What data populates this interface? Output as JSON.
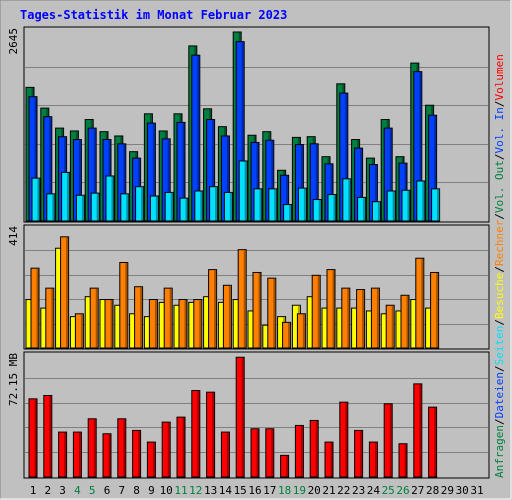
{
  "title": "Tages-Statistik im Monat Februar 2023",
  "colors": {
    "background": "#c0c0c0",
    "frame": "#000000",
    "title": "#0000ff",
    "anfragen": "#008040",
    "dateien": "#0040ff",
    "seiten": "#00e0ff",
    "besuche": "#ffff00",
    "rechner": "#ff8000",
    "vol_out": "#008040",
    "vol_in": "#0040ff",
    "volumen": "#ff0000",
    "weekend_label": "#008040",
    "weekday_label": "#000000"
  },
  "right_legend": [
    {
      "text": "Anfragen",
      "color": "#008040"
    },
    {
      "text": "/",
      "color": "#000000"
    },
    {
      "text": "Dateien",
      "color": "#0040ff"
    },
    {
      "text": "/",
      "color": "#000000"
    },
    {
      "text": "Seiten",
      "color": "#00e0ff"
    },
    {
      "text": "/",
      "color": "#000000"
    },
    {
      "text": "Besuche",
      "color": "#ffff00"
    },
    {
      "text": "/",
      "color": "#000000"
    },
    {
      "text": "Rechner",
      "color": "#ff8000"
    },
    {
      "text": "/",
      "color": "#000000"
    },
    {
      "text": "Vol. Out",
      "color": "#008040"
    },
    {
      "text": "/",
      "color": "#000000"
    },
    {
      "text": "Vol. In",
      "color": "#0040ff"
    },
    {
      "text": "/",
      "color": "#000000"
    },
    {
      "text": "Volumen",
      "color": "#ff0000"
    }
  ],
  "chart_data": {
    "type": "bar",
    "categories": [
      "1",
      "2",
      "3",
      "4",
      "5",
      "6",
      "7",
      "8",
      "9",
      "10",
      "11",
      "12",
      "13",
      "14",
      "15",
      "16",
      "17",
      "18",
      "19",
      "20",
      "21",
      "22",
      "23",
      "24",
      "25",
      "26",
      "27",
      "28",
      "29",
      "30",
      "31"
    ],
    "weekend_days": [
      4,
      5,
      11,
      12,
      18,
      19,
      25,
      26
    ],
    "panels": [
      {
        "name": "hits",
        "axis_max_label": "2645",
        "ymax": 2645,
        "series": [
          {
            "name": "Anfragen",
            "values": [
              1870,
              1580,
              1300,
              1260,
              1420,
              1250,
              1190,
              970,
              1500,
              1260,
              1500,
              2450,
              1570,
              1320,
              2645,
              1200,
              1250,
              710,
              1170,
              1180,
              900,
              1920,
              1140,
              880,
              1420,
              900,
              2210,
              1620,
              0,
              0,
              0
            ]
          },
          {
            "name": "Dateien",
            "values": [
              1740,
              1460,
              1180,
              1140,
              1300,
              1140,
              1080,
              880,
              1370,
              1150,
              1380,
              2320,
              1420,
              1190,
              2510,
              1100,
              1130,
              640,
              1070,
              1080,
              800,
              1790,
              1020,
              790,
              1300,
              810,
              2090,
              1480,
              0,
              0,
              0
            ]
          },
          {
            "name": "Seiten",
            "values": [
              600,
              380,
              680,
              360,
              390,
              630,
              380,
              480,
              350,
              400,
              320,
              420,
              480,
              400,
              840,
              450,
              450,
              230,
              460,
              300,
              370,
              590,
              330,
              270,
              420,
              430,
              560,
              450,
              0,
              0,
              0
            ]
          }
        ]
      },
      {
        "name": "visits",
        "axis_max_label": "414",
        "ymax": 414,
        "series": [
          {
            "name": "Besuche",
            "values": [
              170,
              140,
              350,
              110,
              180,
              170,
              150,
              120,
              110,
              160,
              150,
              160,
              180,
              160,
              170,
              130,
              80,
              110,
              150,
              180,
              140,
              140,
              140,
              130,
              120,
              130,
              170,
              140,
              0,
              0,
              0
            ]
          },
          {
            "name": "Rechner",
            "values": [
              280,
              210,
              390,
              120,
              210,
              170,
              300,
              215,
              170,
              210,
              170,
              170,
              275,
              220,
              345,
              265,
              245,
              90,
              120,
              255,
              275,
              210,
              205,
              210,
              150,
              185,
              315,
              265,
              0,
              0,
              0
            ]
          }
        ]
      },
      {
        "name": "volume",
        "axis_max_label": "72.15 MB",
        "ymax": 72.15,
        "series": [
          {
            "name": "Volumen",
            "values": [
              47,
              49,
              27,
              27,
              35,
              26,
              35,
              28,
              21,
              33,
              36,
              52,
              51,
              27,
              72,
              29,
              29,
              13,
              31,
              34,
              21,
              45,
              28,
              21,
              44,
              20,
              56,
              42,
              0,
              0,
              0
            ]
          }
        ]
      }
    ]
  }
}
